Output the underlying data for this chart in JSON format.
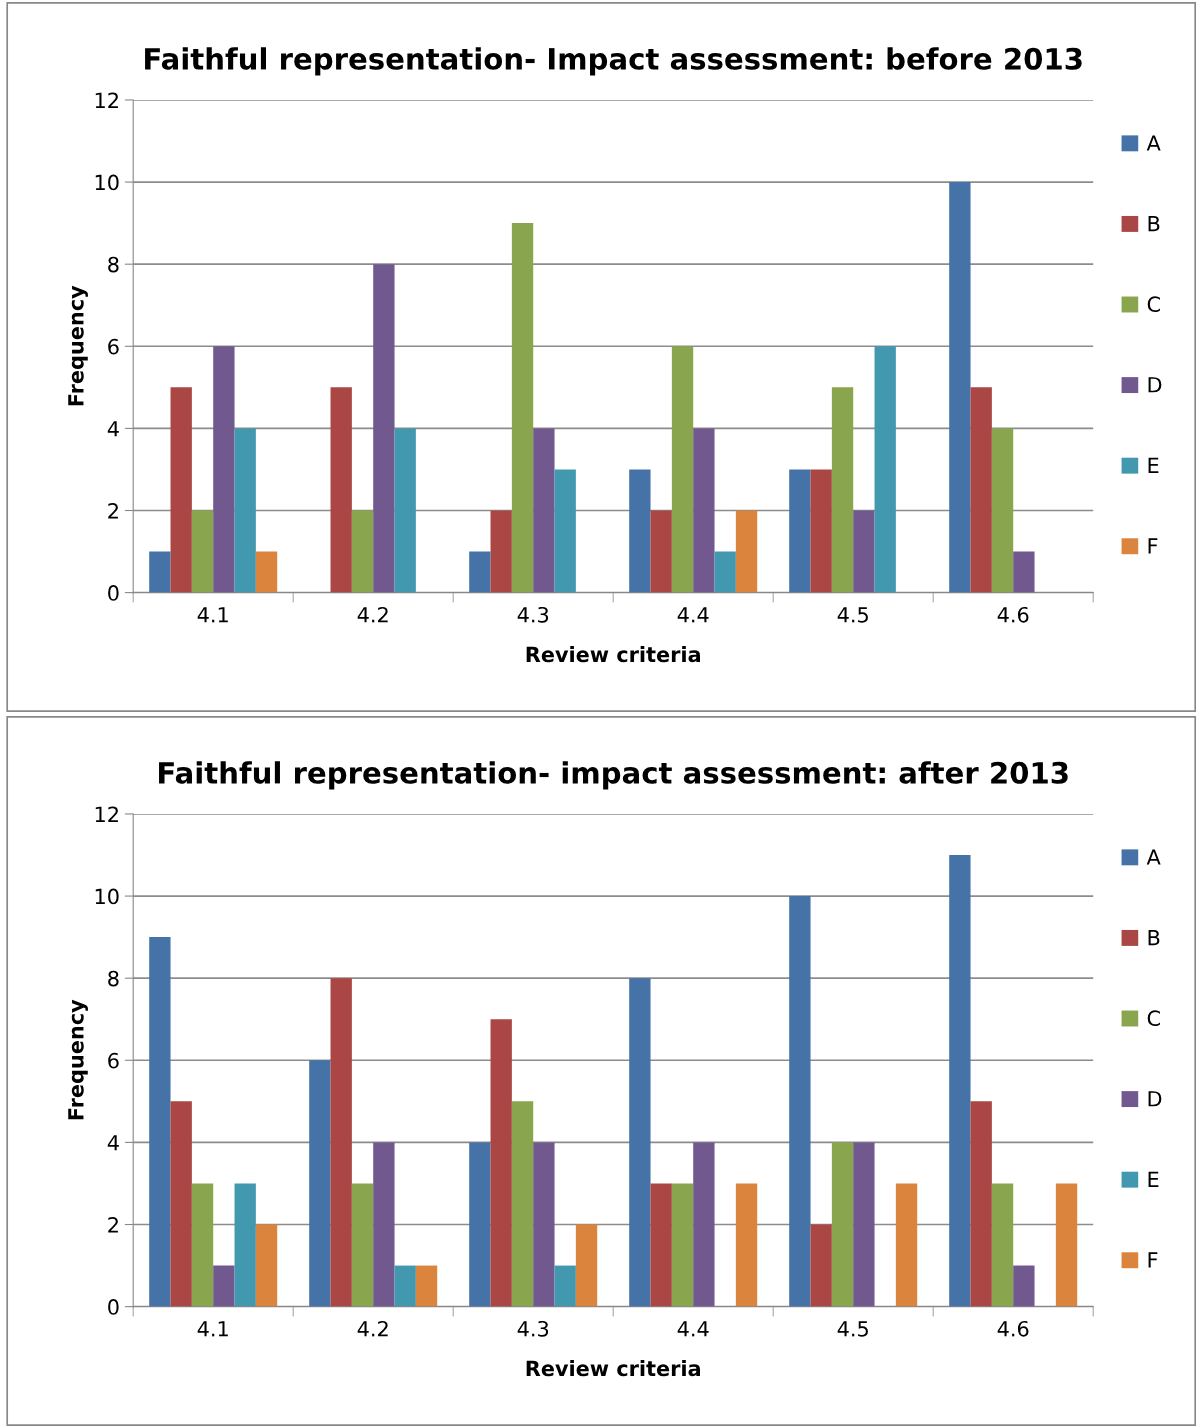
{
  "chart_data": [
    {
      "type": "bar",
      "title": "Faithful representation- Impact assessment: before 2013",
      "xlabel": "Review criteria",
      "ylabel": "Frequency",
      "categories": [
        "4.1",
        "4.2",
        "4.3",
        "4.4",
        "4.5",
        "4.6"
      ],
      "series": [
        {
          "name": "A",
          "color": "#4572a7",
          "values": [
            1,
            0,
            1,
            3,
            3,
            10
          ]
        },
        {
          "name": "B",
          "color": "#aa4643",
          "values": [
            5,
            5,
            2,
            2,
            3,
            5
          ]
        },
        {
          "name": "C",
          "color": "#89a54e",
          "values": [
            2,
            2,
            9,
            6,
            5,
            4
          ]
        },
        {
          "name": "D",
          "color": "#71588f",
          "values": [
            6,
            8,
            4,
            4,
            2,
            1
          ]
        },
        {
          "name": "E",
          "color": "#4198af",
          "values": [
            4,
            4,
            3,
            1,
            6,
            0
          ]
        },
        {
          "name": "F",
          "color": "#db843d",
          "values": [
            1,
            0,
            0,
            2,
            0,
            0
          ]
        }
      ],
      "ylim": [
        0,
        12
      ],
      "yticks": [
        0,
        2,
        4,
        6,
        8,
        10,
        12
      ],
      "grid": "y",
      "legend": "right"
    },
    {
      "type": "bar",
      "title": "Faithful representation- impact assessment: after 2013",
      "xlabel": "Review criteria",
      "ylabel": "Frequency",
      "categories": [
        "4.1",
        "4.2",
        "4.3",
        "4.4",
        "4.5",
        "4.6"
      ],
      "series": [
        {
          "name": "A",
          "color": "#4572a7",
          "values": [
            9,
            6,
            4,
            8,
            10,
            11
          ]
        },
        {
          "name": "B",
          "color": "#aa4643",
          "values": [
            5,
            8,
            7,
            3,
            2,
            5
          ]
        },
        {
          "name": "C",
          "color": "#89a54e",
          "values": [
            3,
            3,
            5,
            3,
            4,
            3
          ]
        },
        {
          "name": "D",
          "color": "#71588f",
          "values": [
            1,
            4,
            4,
            4,
            4,
            1
          ]
        },
        {
          "name": "E",
          "color": "#4198af",
          "values": [
            3,
            1,
            1,
            0,
            0,
            0
          ]
        },
        {
          "name": "F",
          "color": "#db843d",
          "values": [
            2,
            1,
            2,
            3,
            3,
            3
          ]
        }
      ],
      "ylim": [
        0,
        12
      ],
      "yticks": [
        0,
        2,
        4,
        6,
        8,
        10,
        12
      ],
      "grid": "y",
      "legend": "right"
    }
  ]
}
